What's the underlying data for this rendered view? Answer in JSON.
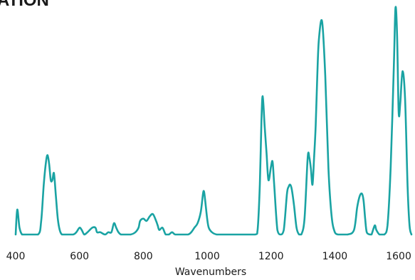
{
  "title": "ATION",
  "chart_data": {
    "type": "line",
    "title": "ATION",
    "xlabel": "Wavenumbers",
    "ylabel": "",
    "xlim": [
      400,
      1640
    ],
    "ylim": [
      0,
      100
    ],
    "x_ticks": [
      400,
      600,
      800,
      1000,
      1200,
      1400,
      1600
    ],
    "x_tick_labels": [
      "400",
      "600",
      "800",
      "1000",
      "1200",
      "1400",
      "1600"
    ],
    "grid": false,
    "color": "#1aa3a3",
    "series": [
      {
        "name": "",
        "x": [
          400,
          405,
          412,
          420,
          430,
          470,
          480,
          488,
          495,
          500,
          505,
          510,
          515,
          520,
          526,
          532,
          538,
          545,
          555,
          580,
          590,
          600,
          607,
          615,
          625,
          640,
          650,
          655,
          665,
          680,
          690,
          700,
          708,
          715,
          722,
          730,
          740,
          760,
          775,
          785,
          790,
          800,
          810,
          820,
          830,
          840,
          845,
          850,
          860,
          870,
          880,
          890,
          900,
          920,
          940,
          950,
          960,
          970,
          980,
          987,
          990,
          993,
          1000,
          1005,
          1015,
          1030,
          1050,
          1100,
          1150,
          1158,
          1165,
          1170,
          1174,
          1180,
          1186,
          1192,
          1200,
          1205,
          1210,
          1220,
          1230,
          1240,
          1250,
          1255,
          1260,
          1265,
          1272,
          1280,
          1288,
          1295,
          1305,
          1315,
          1320,
          1325,
          1330,
          1335,
          1340,
          1345,
          1350,
          1360,
          1370,
          1380,
          1390,
          1400,
          1410,
          1420,
          1440,
          1460,
          1470,
          1478,
          1485,
          1490,
          1495,
          1500,
          1510,
          1515,
          1525,
          1530,
          1540,
          1555,
          1565,
          1575,
          1585,
          1590,
          1595,
          1600,
          1605,
          1612,
          1620,
          1628,
          1634,
          1640
        ],
        "y": [
          0,
          11,
          3,
          0,
          0,
          0,
          6,
          22,
          32,
          35,
          31,
          24,
          24,
          27,
          17,
          7,
          2,
          0,
          0,
          0,
          1,
          3,
          2,
          0,
          1,
          3,
          3,
          1,
          1,
          0,
          1,
          1,
          5,
          3,
          1,
          0,
          0,
          0,
          1,
          3,
          6,
          7,
          6,
          8,
          9,
          6,
          4,
          2,
          3,
          0,
          0,
          1,
          0,
          0,
          0,
          1,
          3,
          5,
          10,
          18,
          19,
          16,
          7,
          3,
          1,
          0,
          0,
          0,
          0,
          2,
          22,
          50,
          61,
          48,
          36,
          24,
          30,
          32,
          22,
          2,
          0,
          2,
          18,
          21,
          22,
          20,
          13,
          3,
          0,
          0,
          7,
          34,
          34,
          29,
          22,
          34,
          48,
          70,
          86,
          94,
          70,
          29,
          8,
          1,
          0,
          0,
          0,
          2,
          12,
          17,
          18,
          15,
          7,
          1,
          0,
          0,
          4,
          2,
          0,
          0,
          4,
          30,
          75,
          100,
          88,
          54,
          58,
          72,
          60,
          21,
          4,
          0
        ]
      }
    ]
  }
}
